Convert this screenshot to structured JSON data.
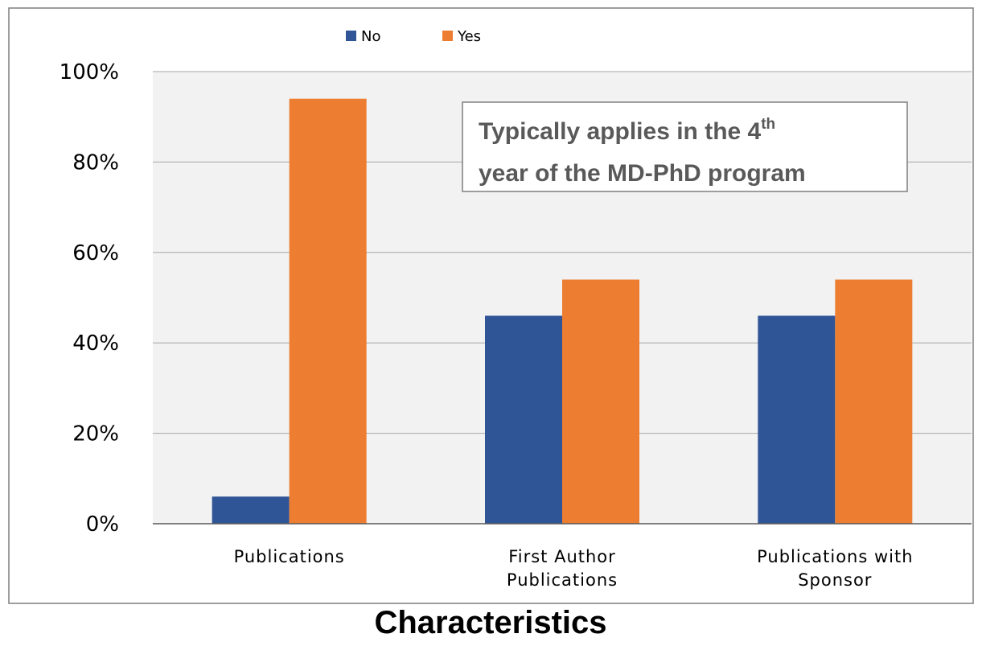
{
  "chart_data": {
    "type": "bar",
    "categories": [
      [
        "Publications"
      ],
      [
        "First Author",
        "Publications"
      ],
      [
        "Publications with",
        "Sponsor"
      ]
    ],
    "series": [
      {
        "name": "No",
        "values": [
          6,
          46,
          46
        ],
        "color": "#2F5597"
      },
      {
        "name": "Yes",
        "values": [
          94,
          54,
          54
        ],
        "color": "#ED7D31"
      }
    ],
    "xlabel": "Characteristics",
    "ylabel": "",
    "ylim": [
      0,
      100
    ],
    "yticks": [
      0,
      20,
      40,
      60,
      80,
      100
    ],
    "ytick_labels": [
      "0%",
      "20%",
      "40%",
      "60%",
      "80%",
      "100%"
    ],
    "grid": true,
    "legend_position": "top-left",
    "annotation": {
      "line1": "Typically applies in the 4",
      "line1_superscript": "th",
      "line2": "year of the MD-PhD program"
    },
    "colors": {
      "plot_background": "#F2F2F2",
      "gridline": "#A6A6A6",
      "frame": "#7F7F7F"
    }
  }
}
